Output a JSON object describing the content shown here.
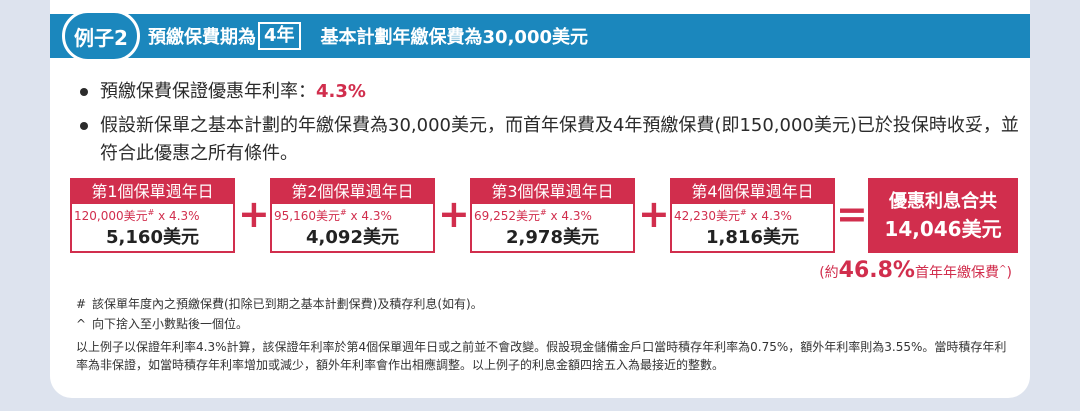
{
  "header": {
    "example_label": "例子2",
    "title_prefix": "預繳保費期為",
    "title_boxed": "4年",
    "title_suffix": "基本計劃年繳保費為30,000美元"
  },
  "bullets": [
    {
      "text": "預繳保費保證優惠年利率：",
      "highlight": "4.3%"
    },
    {
      "text": "假設新保單之基本計劃的年繳保費為30,000美元，而首年保費及4年預繳保費(即150,000美元)已於投保時收妥，並符合此優惠之所有條件。"
    }
  ],
  "years": [
    {
      "label": "第1個保單週年日",
      "formula_a": "120,000美元",
      "formula_mark": "#",
      "formula_b": " x 4.3%",
      "value": "5,160美元"
    },
    {
      "label": "第2個保單週年日",
      "formula_a": "95,160美元",
      "formula_mark": "#",
      "formula_b": " x 4.3%",
      "value": "4,092美元"
    },
    {
      "label": "第3個保單週年日",
      "formula_a": "69,252美元",
      "formula_mark": "#",
      "formula_b": " x 4.3%",
      "value": "2,978美元"
    },
    {
      "label": "第4個保單週年日",
      "formula_a": "42,230美元",
      "formula_mark": "#",
      "formula_b": " x 4.3%",
      "value": "1,816美元"
    }
  ],
  "operators": {
    "plus": "+",
    "equals": "="
  },
  "total": {
    "label": "優惠利息合共",
    "value": "14,046美元"
  },
  "percent_note": {
    "open": "(約",
    "value": "46.8%",
    "suffix": "首年年繳保費",
    "mark": "^",
    "close": ")"
  },
  "notes": [
    {
      "mark": "#",
      "text": "該保單年度內之預繳保費(扣除已到期之基本計劃保費)及積存利息(如有)。"
    },
    {
      "mark": "^",
      "text": "向下捨入至小數點後一個位。"
    }
  ],
  "paragraph": "以上例子以保證年利率4.3%計算，該保證年利率於第4個保單週年日或之前並不會改變。假設現金儲備金戶口當時積存年利率為0.75%，額外年利率則為3.55%。當時積存年利率為非保證，如當時積存年利率增加或減少，額外年利率會作出相應調整。以上例子的利息金額四捨五入為最接近的整數。",
  "colors": {
    "accent": "#d12e4d",
    "header_blue": "#1b87bd",
    "background": "#dde3ee"
  }
}
